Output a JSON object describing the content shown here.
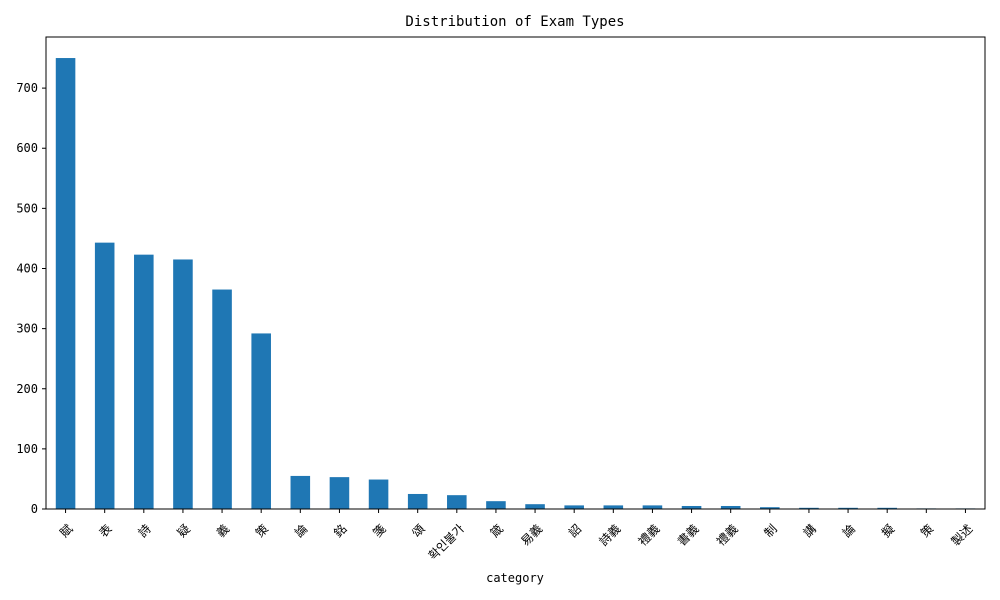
{
  "chart_data": {
    "type": "bar",
    "title": "Distribution of Exam Types",
    "xlabel": "category",
    "ylabel": "",
    "ylim": [
      0,
      785
    ],
    "yticks": [
      0,
      100,
      200,
      300,
      400,
      500,
      600,
      700
    ],
    "bar_color": "#1f77b4",
    "grid": false,
    "categories": [
      "賦",
      "表",
      "詩",
      "疑",
      "義",
      "策",
      "論",
      "銘",
      "箋",
      "頌",
      "확인불가",
      "箴",
      "易義",
      "詔",
      "詩義",
      "禮義",
      "書義",
      "禮義",
      "制",
      "講",
      "論",
      "擬",
      "策",
      "製述"
    ],
    "values": [
      750,
      443,
      423,
      415,
      365,
      292,
      55,
      53,
      49,
      25,
      23,
      13,
      8,
      6,
      6,
      6,
      5,
      5,
      3,
      2,
      2,
      2,
      1,
      1
    ]
  }
}
